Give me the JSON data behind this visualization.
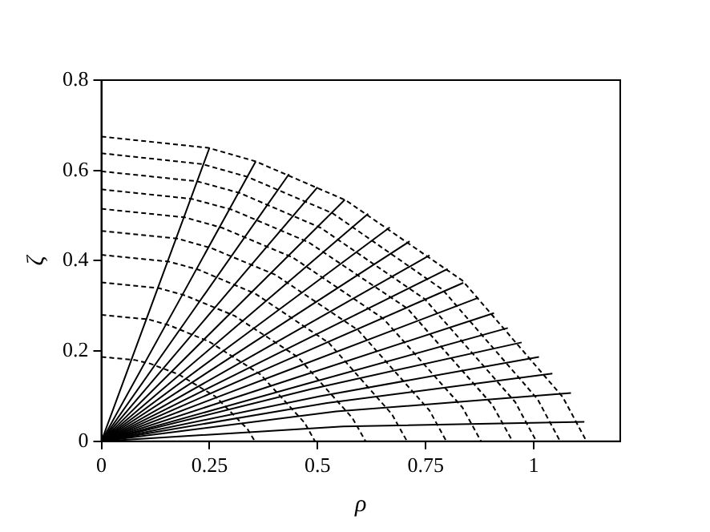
{
  "chart_data": {
    "type": "line",
    "xlabel": "ρ",
    "ylabel": "ζ",
    "xlim": [
      0,
      1.2
    ],
    "ylim": [
      0,
      0.8
    ],
    "xticks": [
      0,
      0.25,
      0.5,
      0.75,
      1
    ],
    "yticks": [
      0,
      0.2,
      0.4,
      0.6,
      0.8
    ],
    "grid": false,
    "legend": false,
    "marker": "none",
    "series": [
      {
        "color": "#000000",
        "line_style": "dashed",
        "x": [
          0,
          0.078,
          0.113,
          0.179,
          0.264,
          0.338,
          0.355
        ],
        "values": [
          0.187,
          0.18,
          0.172,
          0.148,
          0.099,
          0.027,
          0
        ]
      },
      {
        "color": "#000000",
        "line_style": "dashed",
        "x": [
          0,
          0.109,
          0.157,
          0.249,
          0.368,
          0.47,
          0.494
        ],
        "values": [
          0.28,
          0.27,
          0.257,
          0.221,
          0.148,
          0.041,
          0
        ]
      },
      {
        "color": "#000000",
        "line_style": "dashed",
        "x": [
          0,
          0.134,
          0.194,
          0.308,
          0.455,
          0.581,
          0.611
        ],
        "values": [
          0.352,
          0.339,
          0.323,
          0.278,
          0.186,
          0.051,
          0
        ]
      },
      {
        "color": "#000000",
        "line_style": "dashed",
        "x": [
          0,
          0.156,
          0.225,
          0.356,
          0.526,
          0.672,
          0.707
        ],
        "values": [
          0.413,
          0.398,
          0.38,
          0.327,
          0.218,
          0.06,
          0
        ]
      },
      {
        "color": "#000000",
        "line_style": "dashed",
        "x": [
          0,
          0.176,
          0.254,
          0.402,
          0.594,
          0.759,
          0.798
        ],
        "values": [
          0.466,
          0.449,
          0.428,
          0.369,
          0.246,
          0.068,
          0
        ]
      },
      {
        "color": "#000000",
        "line_style": "dashed",
        "x": [
          0,
          0.193,
          0.279,
          0.443,
          0.653,
          0.835,
          0.878
        ],
        "values": [
          0.515,
          0.496,
          0.473,
          0.407,
          0.271,
          0.075,
          0
        ]
      },
      {
        "color": "#000000",
        "line_style": "dashed",
        "x": [
          0,
          0.209,
          0.302,
          0.479,
          0.708,
          0.904,
          0.951
        ],
        "values": [
          0.558,
          0.537,
          0.513,
          0.441,
          0.294,
          0.081,
          0
        ]
      },
      {
        "color": "#000000",
        "line_style": "dashed",
        "x": [
          0,
          0.221,
          0.32,
          0.507,
          0.748,
          0.957,
          1.006
        ],
        "values": [
          0.598,
          0.576,
          0.55,
          0.473,
          0.315,
          0.087,
          0
        ]
      },
      {
        "color": "#000000",
        "line_style": "dashed",
        "x": [
          0,
          0.233,
          0.337,
          0.535,
          0.789,
          1.009,
          1.061
        ],
        "values": [
          0.638,
          0.614,
          0.586,
          0.505,
          0.336,
          0.093,
          0
        ]
      },
      {
        "color": "#000000",
        "line_style": "dashed",
        "x": [
          0,
          0.247,
          0.357,
          0.565,
          0.835,
          1.067,
          1.122
        ],
        "values": [
          0.675,
          0.65,
          0.62,
          0.534,
          0.356,
          0.098,
          0
        ]
      },
      {
        "color": "#000000",
        "line_style": "solid",
        "x": [
          0,
          0.125,
          0.25
        ],
        "values": [
          0,
          0.325,
          0.65
        ]
      },
      {
        "color": "#000000",
        "line_style": "solid",
        "x": [
          0,
          0.179,
          0.357
        ],
        "values": [
          0,
          0.31,
          0.62
        ]
      },
      {
        "color": "#000000",
        "line_style": "solid",
        "x": [
          0,
          0.217,
          0.434
        ],
        "values": [
          0,
          0.296,
          0.592
        ]
      },
      {
        "color": "#000000",
        "line_style": "solid",
        "x": [
          0,
          0.25,
          0.5
        ],
        "values": [
          0,
          0.282,
          0.563
        ]
      },
      {
        "color": "#000000",
        "line_style": "solid",
        "x": [
          0,
          0.282,
          0.563
        ],
        "values": [
          0,
          0.268,
          0.535
        ]
      },
      {
        "color": "#000000",
        "line_style": "solid",
        "x": [
          0,
          0.309,
          0.617
        ],
        "values": [
          0,
          0.252,
          0.504
        ]
      },
      {
        "color": "#000000",
        "line_style": "solid",
        "x": [
          0,
          0.334,
          0.667
        ],
        "values": [
          0,
          0.237,
          0.474
        ]
      },
      {
        "color": "#000000",
        "line_style": "solid",
        "x": [
          0,
          0.357,
          0.713
        ],
        "values": [
          0,
          0.222,
          0.443
        ]
      },
      {
        "color": "#000000",
        "line_style": "solid",
        "x": [
          0,
          0.38,
          0.759
        ],
        "values": [
          0,
          0.206,
          0.412
        ]
      },
      {
        "color": "#000000",
        "line_style": "solid",
        "x": [
          0,
          0.401,
          0.801
        ],
        "values": [
          0,
          0.191,
          0.382
        ]
      },
      {
        "color": "#000000",
        "line_style": "solid",
        "x": [
          0,
          0.419,
          0.837
        ],
        "values": [
          0,
          0.176,
          0.351
        ]
      },
      {
        "color": "#000000",
        "line_style": "solid",
        "x": [
          0,
          0.436,
          0.872
        ],
        "values": [
          0,
          0.159,
          0.318
        ]
      },
      {
        "color": "#000000",
        "line_style": "solid",
        "x": [
          0,
          0.454,
          0.908
        ],
        "values": [
          0,
          0.142,
          0.284
        ]
      },
      {
        "color": "#000000",
        "line_style": "solid",
        "x": [
          0,
          0.47,
          0.94
        ],
        "values": [
          0,
          0.126,
          0.251
        ]
      },
      {
        "color": "#000000",
        "line_style": "solid",
        "x": [
          0,
          0.486,
          0.972
        ],
        "values": [
          0,
          0.116,
          0.219
        ]
      },
      {
        "color": "#000000",
        "line_style": "solid",
        "x": [
          0,
          0.506,
          1.012
        ],
        "values": [
          0,
          0.1,
          0.187
        ]
      },
      {
        "color": "#000000",
        "line_style": "solid",
        "x": [
          0,
          0.522,
          1.043
        ],
        "values": [
          0,
          0.085,
          0.15
        ]
      },
      {
        "color": "#000000",
        "line_style": "solid",
        "x": [
          0,
          0.543,
          1.086
        ],
        "values": [
          0,
          0.066,
          0.107
        ]
      },
      {
        "color": "#000000",
        "line_style": "solid",
        "x": [
          0,
          0.559,
          1.117
        ],
        "values": [
          0,
          0.033,
          0.043
        ]
      }
    ]
  }
}
